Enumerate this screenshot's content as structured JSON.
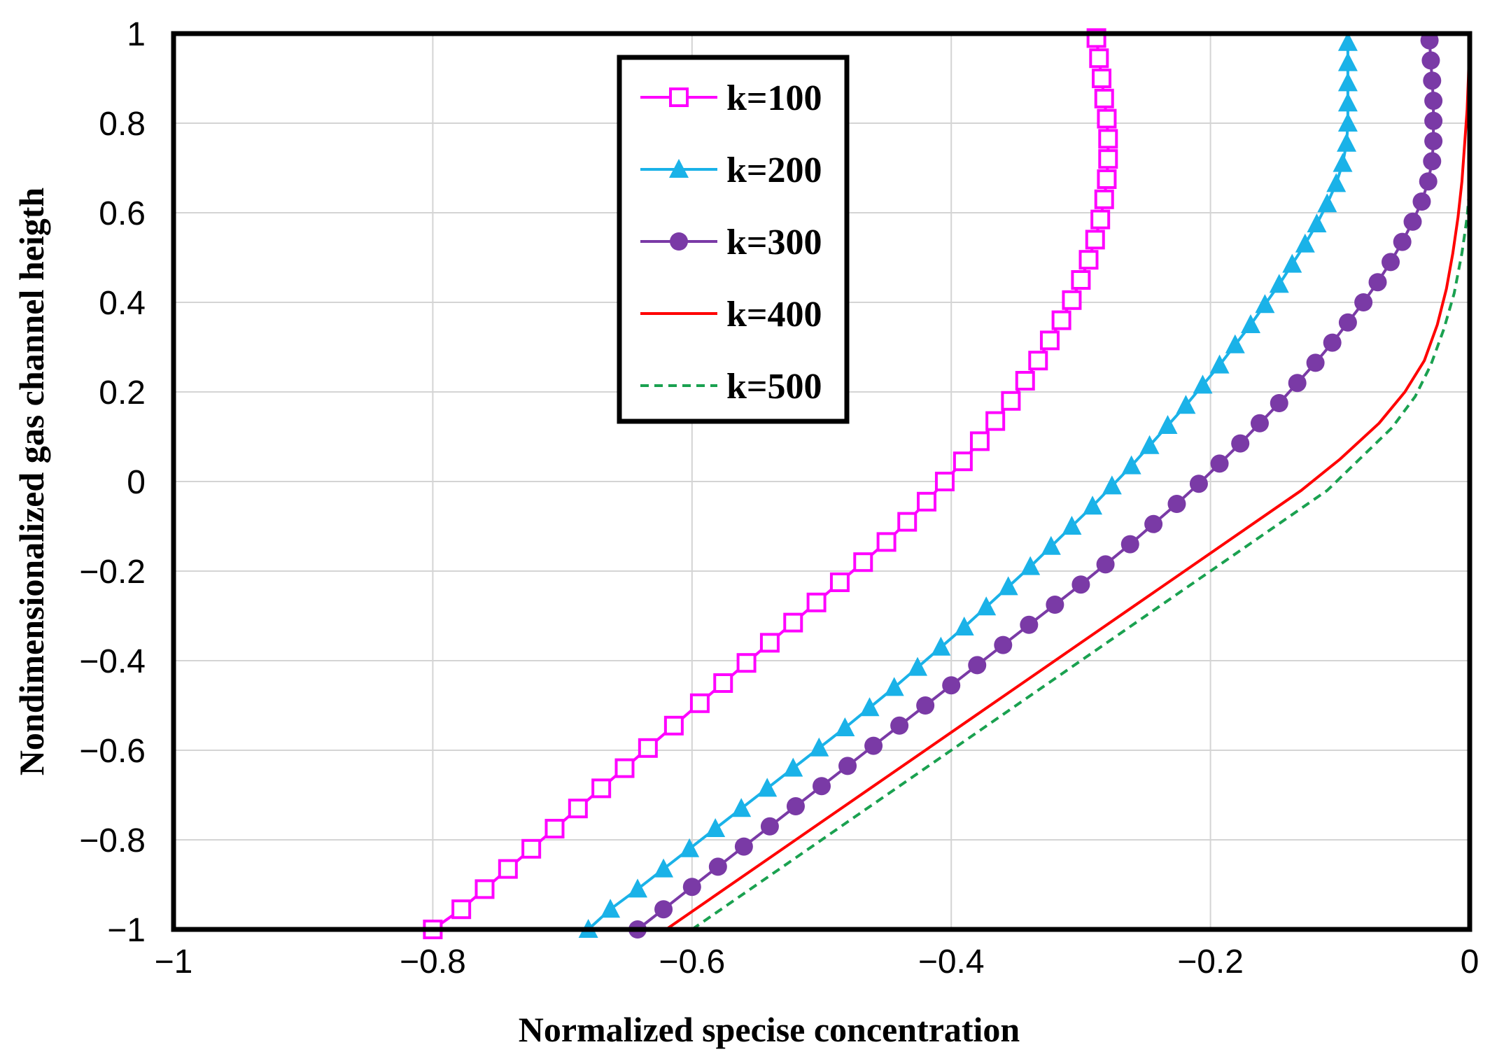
{
  "chart_data": {
    "type": "line",
    "xlabel": "Normalized specise concentration",
    "ylabel": "Nondimensionalized gas channel heigth",
    "xlim": [
      -1,
      0
    ],
    "ylim": [
      -1,
      1
    ],
    "xticks": [
      "−1",
      "−0.8",
      "−0.6",
      "−0.4",
      "−0.2",
      "0"
    ],
    "yticks": [
      "1",
      "0.8",
      "0.6",
      "0.4",
      "0.2",
      "0",
      "−0.2",
      "−0.4",
      "−0.6",
      "−0.8",
      "−1"
    ],
    "grid": true,
    "legend_position": "top-center",
    "series": [
      {
        "name": "k=100",
        "color": "#ff00ff",
        "marker": "square-open",
        "dash": "solid",
        "points": [
          [
            -0.8,
            -1.0
          ],
          [
            -0.778,
            -0.955
          ],
          [
            -0.76,
            -0.91
          ],
          [
            -0.742,
            -0.865
          ],
          [
            -0.724,
            -0.82
          ],
          [
            -0.706,
            -0.775
          ],
          [
            -0.688,
            -0.73
          ],
          [
            -0.67,
            -0.685
          ],
          [
            -0.652,
            -0.64
          ],
          [
            -0.634,
            -0.595
          ],
          [
            -0.614,
            -0.545
          ],
          [
            -0.594,
            -0.495
          ],
          [
            -0.576,
            -0.45
          ],
          [
            -0.558,
            -0.405
          ],
          [
            -0.54,
            -0.36
          ],
          [
            -0.522,
            -0.315
          ],
          [
            -0.504,
            -0.27
          ],
          [
            -0.486,
            -0.225
          ],
          [
            -0.468,
            -0.18
          ],
          [
            -0.45,
            -0.135
          ],
          [
            -0.434,
            -0.09
          ],
          [
            -0.419,
            -0.045
          ],
          [
            -0.405,
            0.0
          ],
          [
            -0.391,
            0.045
          ],
          [
            -0.378,
            0.09
          ],
          [
            -0.366,
            0.135
          ],
          [
            -0.354,
            0.18
          ],
          [
            -0.343,
            0.225
          ],
          [
            -0.333,
            0.27
          ],
          [
            -0.324,
            0.315
          ],
          [
            -0.315,
            0.36
          ],
          [
            -0.307,
            0.405
          ],
          [
            -0.3,
            0.45
          ],
          [
            -0.294,
            0.495
          ],
          [
            -0.289,
            0.54
          ],
          [
            -0.285,
            0.585
          ],
          [
            -0.282,
            0.63
          ],
          [
            -0.28,
            0.675
          ],
          [
            -0.279,
            0.72
          ],
          [
            -0.279,
            0.765
          ],
          [
            -0.28,
            0.81
          ],
          [
            -0.282,
            0.855
          ],
          [
            -0.284,
            0.9
          ],
          [
            -0.286,
            0.945
          ],
          [
            -0.288,
            0.99
          ]
        ]
      },
      {
        "name": "k=200",
        "color": "#1ab2e8",
        "marker": "triangle",
        "dash": "solid",
        "points": [
          [
            -0.68,
            -1.0
          ],
          [
            -0.663,
            -0.955
          ],
          [
            -0.642,
            -0.91
          ],
          [
            -0.622,
            -0.865
          ],
          [
            -0.602,
            -0.82
          ],
          [
            -0.582,
            -0.775
          ],
          [
            -0.562,
            -0.73
          ],
          [
            -0.542,
            -0.685
          ],
          [
            -0.522,
            -0.64
          ],
          [
            -0.502,
            -0.595
          ],
          [
            -0.482,
            -0.55
          ],
          [
            -0.463,
            -0.505
          ],
          [
            -0.444,
            -0.46
          ],
          [
            -0.426,
            -0.415
          ],
          [
            -0.408,
            -0.37
          ],
          [
            -0.39,
            -0.325
          ],
          [
            -0.373,
            -0.28
          ],
          [
            -0.356,
            -0.235
          ],
          [
            -0.339,
            -0.19
          ],
          [
            -0.323,
            -0.145
          ],
          [
            -0.307,
            -0.1
          ],
          [
            -0.291,
            -0.055
          ],
          [
            -0.276,
            -0.01
          ],
          [
            -0.261,
            0.035
          ],
          [
            -0.247,
            0.08
          ],
          [
            -0.233,
            0.125
          ],
          [
            -0.219,
            0.17
          ],
          [
            -0.206,
            0.215
          ],
          [
            -0.193,
            0.26
          ],
          [
            -0.181,
            0.305
          ],
          [
            -0.169,
            0.35
          ],
          [
            -0.158,
            0.395
          ],
          [
            -0.147,
            0.44
          ],
          [
            -0.137,
            0.485
          ],
          [
            -0.127,
            0.53
          ],
          [
            -0.118,
            0.575
          ],
          [
            -0.11,
            0.62
          ],
          [
            -0.103,
            0.665
          ],
          [
            -0.098,
            0.71
          ],
          [
            -0.095,
            0.755
          ],
          [
            -0.094,
            0.8
          ],
          [
            -0.094,
            0.845
          ],
          [
            -0.094,
            0.89
          ],
          [
            -0.094,
            0.935
          ],
          [
            -0.094,
            0.98
          ]
        ]
      },
      {
        "name": "k=300",
        "color": "#7a3aa6",
        "marker": "circle",
        "dash": "solid",
        "points": [
          [
            -0.642,
            -1.0
          ],
          [
            -0.622,
            -0.955
          ],
          [
            -0.6,
            -0.905
          ],
          [
            -0.58,
            -0.86
          ],
          [
            -0.56,
            -0.815
          ],
          [
            -0.54,
            -0.77
          ],
          [
            -0.52,
            -0.725
          ],
          [
            -0.5,
            -0.68
          ],
          [
            -0.48,
            -0.635
          ],
          [
            -0.46,
            -0.59
          ],
          [
            -0.44,
            -0.545
          ],
          [
            -0.42,
            -0.5
          ],
          [
            -0.4,
            -0.455
          ],
          [
            -0.38,
            -0.41
          ],
          [
            -0.36,
            -0.365
          ],
          [
            -0.34,
            -0.32
          ],
          [
            -0.32,
            -0.275
          ],
          [
            -0.3,
            -0.23
          ],
          [
            -0.281,
            -0.185
          ],
          [
            -0.262,
            -0.14
          ],
          [
            -0.244,
            -0.095
          ],
          [
            -0.226,
            -0.05
          ],
          [
            -0.209,
            -0.005
          ],
          [
            -0.193,
            0.04
          ],
          [
            -0.177,
            0.085
          ],
          [
            -0.162,
            0.13
          ],
          [
            -0.147,
            0.175
          ],
          [
            -0.133,
            0.22
          ],
          [
            -0.119,
            0.265
          ],
          [
            -0.106,
            0.31
          ],
          [
            -0.094,
            0.355
          ],
          [
            -0.082,
            0.4
          ],
          [
            -0.071,
            0.445
          ],
          [
            -0.061,
            0.49
          ],
          [
            -0.052,
            0.535
          ],
          [
            -0.044,
            0.58
          ],
          [
            -0.037,
            0.625
          ],
          [
            -0.032,
            0.67
          ],
          [
            -0.029,
            0.715
          ],
          [
            -0.028,
            0.76
          ],
          [
            -0.028,
            0.805
          ],
          [
            -0.028,
            0.85
          ],
          [
            -0.029,
            0.895
          ],
          [
            -0.03,
            0.94
          ],
          [
            -0.031,
            0.985
          ]
        ]
      },
      {
        "name": "k=400",
        "color": "#ff0000",
        "marker": "none",
        "dash": "solid",
        "points": [
          [
            -0.62,
            -1.0
          ],
          [
            -0.58,
            -0.92
          ],
          [
            -0.54,
            -0.84
          ],
          [
            -0.5,
            -0.76
          ],
          [
            -0.46,
            -0.68
          ],
          [
            -0.42,
            -0.6
          ],
          [
            -0.38,
            -0.52
          ],
          [
            -0.34,
            -0.44
          ],
          [
            -0.3,
            -0.36
          ],
          [
            -0.26,
            -0.28
          ],
          [
            -0.22,
            -0.2
          ],
          [
            -0.19,
            -0.14
          ],
          [
            -0.16,
            -0.08
          ],
          [
            -0.13,
            -0.02
          ],
          [
            -0.1,
            0.05
          ],
          [
            -0.07,
            0.13
          ],
          [
            -0.05,
            0.2
          ],
          [
            -0.035,
            0.27
          ],
          [
            -0.025,
            0.35
          ],
          [
            -0.018,
            0.43
          ],
          [
            -0.013,
            0.51
          ],
          [
            -0.009,
            0.59
          ],
          [
            -0.006,
            0.67
          ],
          [
            -0.004,
            0.75
          ],
          [
            -0.002,
            0.83
          ],
          [
            -0.001,
            0.9
          ],
          [
            0.0,
            1.0
          ]
        ]
      },
      {
        "name": "k=500",
        "color": "#1aa150",
        "marker": "none",
        "dash": "dashed",
        "points": [
          [
            -0.6,
            -1.0
          ],
          [
            -0.56,
            -0.92
          ],
          [
            -0.52,
            -0.84
          ],
          [
            -0.48,
            -0.76
          ],
          [
            -0.44,
            -0.68
          ],
          [
            -0.4,
            -0.6
          ],
          [
            -0.36,
            -0.52
          ],
          [
            -0.32,
            -0.44
          ],
          [
            -0.28,
            -0.36
          ],
          [
            -0.24,
            -0.28
          ],
          [
            -0.2,
            -0.2
          ],
          [
            -0.17,
            -0.14
          ],
          [
            -0.14,
            -0.08
          ],
          [
            -0.11,
            -0.02
          ],
          [
            -0.085,
            0.05
          ],
          [
            -0.06,
            0.12
          ],
          [
            -0.042,
            0.19
          ],
          [
            -0.03,
            0.26
          ],
          [
            -0.02,
            0.34
          ],
          [
            -0.012,
            0.42
          ],
          [
            -0.006,
            0.51
          ],
          [
            -0.002,
            0.59
          ],
          [
            0.0,
            0.66
          ]
        ]
      }
    ]
  }
}
